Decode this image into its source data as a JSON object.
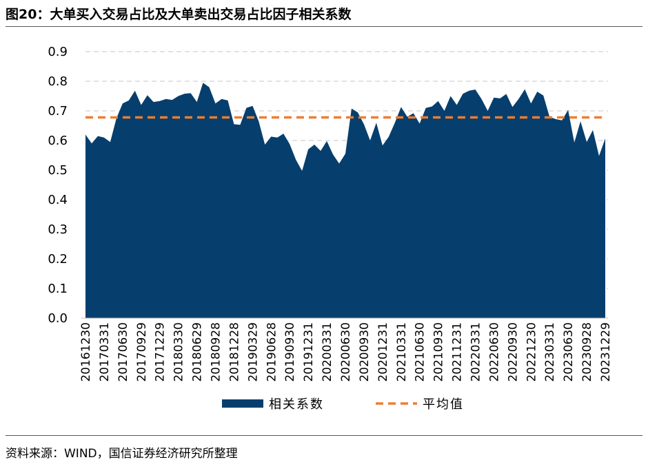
{
  "header": {
    "title": "图20：大单买入交易占比及大单卖出交易占比因子相关系数"
  },
  "footer": {
    "source": "资料来源：WIND，国信证券经济研究所整理"
  },
  "colors": {
    "area": "#063F6E",
    "mean": "#ED7D31",
    "grid": "#D9D9D9"
  },
  "chart_data": {
    "type": "area",
    "title": "大单买入交易占比及大单卖出交易占比因子相关系数",
    "xlabel": "",
    "ylabel": "",
    "ylim": [
      0,
      0.9
    ],
    "yticks": [
      "0.0",
      "0.1",
      "0.2",
      "0.3",
      "0.4",
      "0.5",
      "0.6",
      "0.7",
      "0.8",
      "0.9"
    ],
    "xticks": [
      "20161230",
      "20170331",
      "20170630",
      "20170929",
      "20171229",
      "20180330",
      "20180629",
      "20180928",
      "20181228",
      "20190329",
      "20190628",
      "20190930",
      "20191231",
      "20200331",
      "20200630",
      "20200930",
      "20201231",
      "20210331",
      "20210630",
      "20210930",
      "20211231",
      "20220331",
      "20220630",
      "20220930",
      "20221230",
      "20230331",
      "20230630",
      "20230928",
      "20231229"
    ],
    "series": [
      {
        "name": "相关系数",
        "type": "area",
        "values": [
          0.62,
          0.59,
          0.615,
          0.61,
          0.595,
          0.675,
          0.725,
          0.735,
          0.768,
          0.72,
          0.753,
          0.73,
          0.733,
          0.74,
          0.737,
          0.75,
          0.758,
          0.76,
          0.73,
          0.795,
          0.78,
          0.725,
          0.74,
          0.735,
          0.655,
          0.653,
          0.71,
          0.717,
          0.665,
          0.586,
          0.613,
          0.61,
          0.623,
          0.588,
          0.535,
          0.497,
          0.57,
          0.586,
          0.565,
          0.598,
          0.553,
          0.522,
          0.555,
          0.708,
          0.695,
          0.655,
          0.6,
          0.66,
          0.583,
          0.612,
          0.66,
          0.713,
          0.68,
          0.692,
          0.657,
          0.71,
          0.715,
          0.733,
          0.7,
          0.75,
          0.72,
          0.758,
          0.768,
          0.772,
          0.74,
          0.7,
          0.745,
          0.742,
          0.757,
          0.713,
          0.74,
          0.773,
          0.725,
          0.765,
          0.752,
          0.68,
          0.672,
          0.668,
          0.703,
          0.593,
          0.665,
          0.595,
          0.635,
          0.548,
          0.607
        ]
      },
      {
        "name": "平均值",
        "type": "line",
        "style": "dashed",
        "value": 0.678
      }
    ],
    "legend": [
      "相关系数",
      "平均值"
    ],
    "legend_position": "bottom",
    "grid": true
  }
}
